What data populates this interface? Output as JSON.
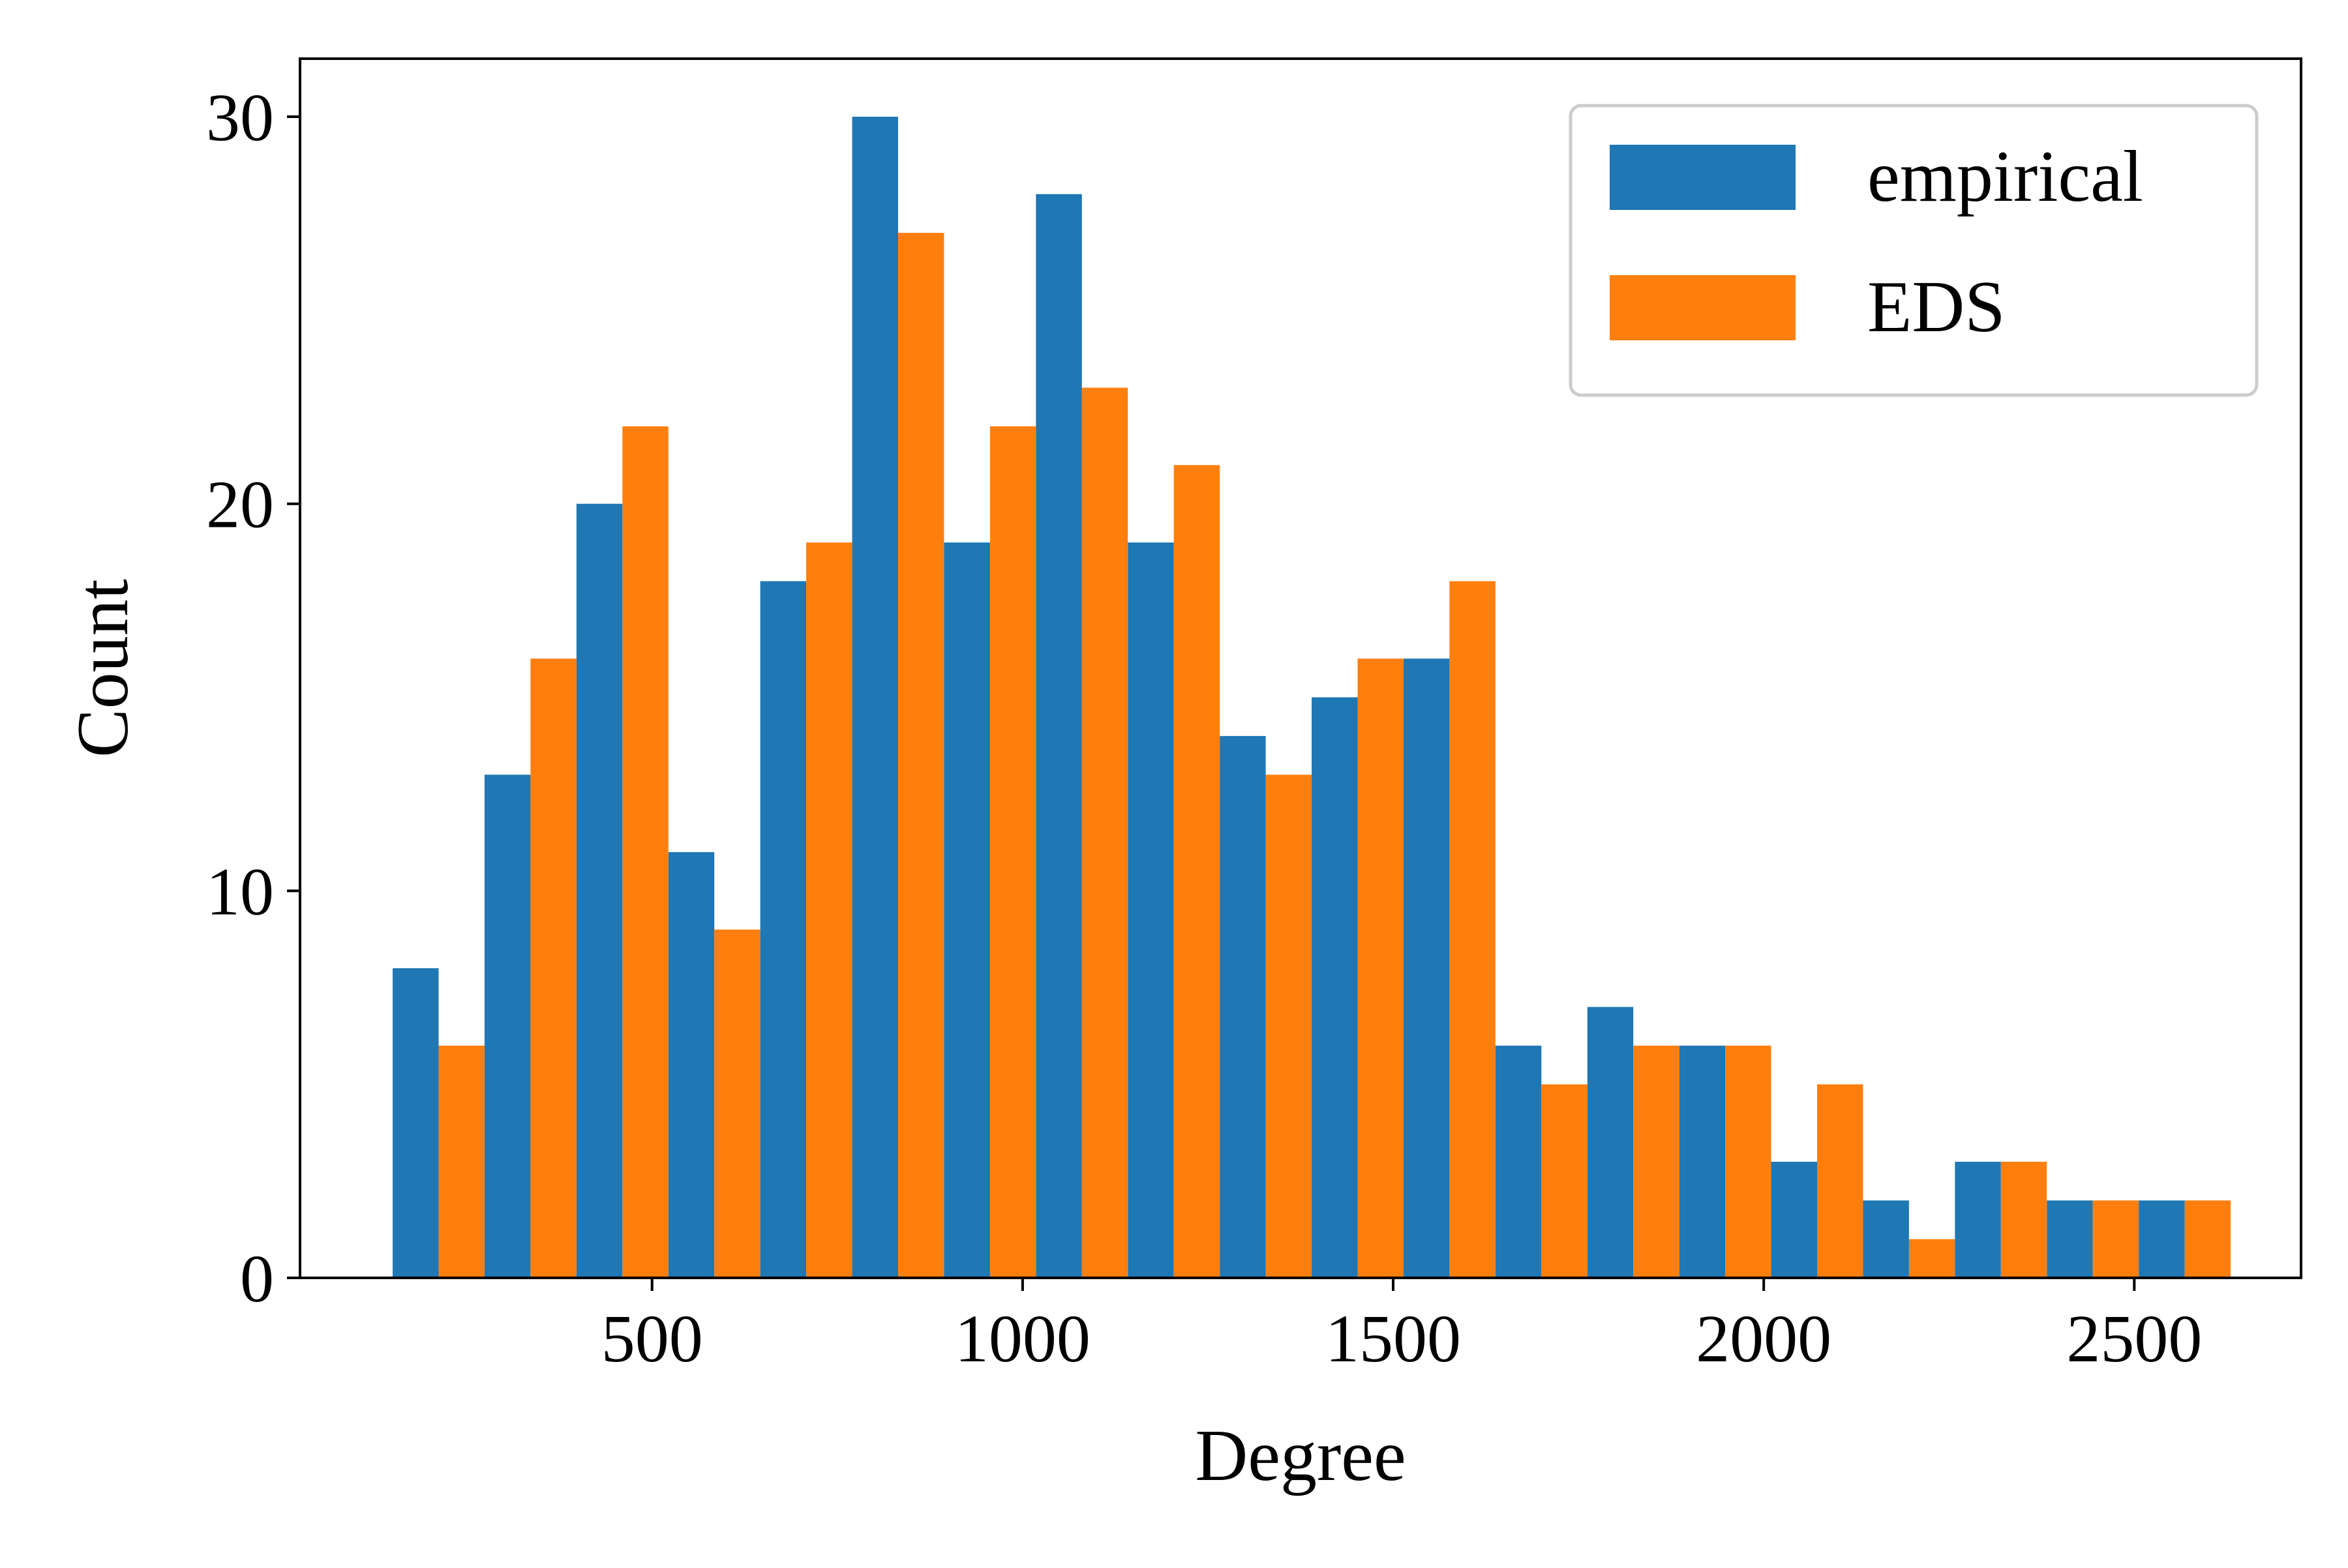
{
  "chart_data": {
    "type": "bar",
    "xlabel": "Degree",
    "ylabel": "Count",
    "xlim": [
      25,
      2725
    ],
    "ylim": [
      0,
      31.5
    ],
    "xticks": [
      500,
      1000,
      1500,
      2000,
      2500
    ],
    "yticks": [
      0,
      10,
      20,
      30
    ],
    "grid": false,
    "legend_position": "top-right",
    "bin_width": 124,
    "bins": [
      [
        150,
        274
      ],
      [
        274,
        398
      ],
      [
        398,
        522
      ],
      [
        522,
        646
      ],
      [
        646,
        770
      ],
      [
        770,
        894
      ],
      [
        894,
        1018
      ],
      [
        1018,
        1142
      ],
      [
        1142,
        1266
      ],
      [
        1266,
        1390
      ],
      [
        1390,
        1514
      ],
      [
        1514,
        1638
      ],
      [
        1638,
        1762
      ],
      [
        1762,
        1886
      ],
      [
        1886,
        2010
      ],
      [
        2010,
        2134
      ],
      [
        2134,
        2258
      ],
      [
        2258,
        2382
      ],
      [
        2382,
        2506
      ],
      [
        2506,
        2630
      ]
    ],
    "series": [
      {
        "name": "empirical",
        "color": "#1f77b4",
        "values": [
          8,
          13,
          20,
          11,
          18,
          30,
          19,
          28,
          19,
          14,
          15,
          16,
          6,
          7,
          6,
          3,
          2,
          3,
          2,
          2
        ]
      },
      {
        "name": "EDS",
        "color": "#ff7f0e",
        "values": [
          6,
          16,
          22,
          9,
          19,
          27,
          22,
          23,
          21,
          13,
          16,
          18,
          5,
          6,
          6,
          5,
          1,
          3,
          2,
          2
        ]
      }
    ]
  }
}
